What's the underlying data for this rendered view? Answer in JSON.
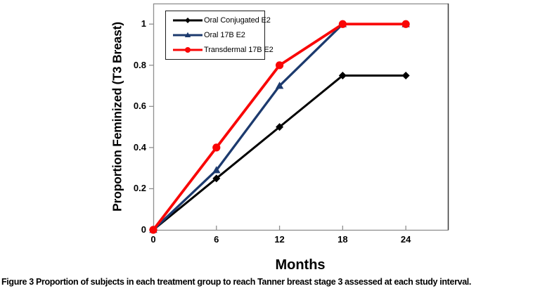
{
  "figure": {
    "caption_label": "Figure 3",
    "caption_text": "Proportion of subjects in each treatment group to reach Tanner breast stage 3 assessed at each study interval."
  },
  "chart_data": {
    "type": "line",
    "title": "",
    "xlabel": "Months",
    "ylabel": "Proportion Feminized (T3 Breast)",
    "x": [
      0,
      6,
      12,
      18,
      24
    ],
    "xtick_labels": [
      "0",
      "6",
      "12",
      "18",
      "24"
    ],
    "ytick_values": [
      0,
      0.2,
      0.4,
      0.6,
      0.8,
      1
    ],
    "ytick_labels": [
      "0",
      "0.2",
      "0.4",
      "0.6",
      "0.8",
      "1"
    ],
    "xlim": [
      0,
      28
    ],
    "ylim": [
      0,
      1.1
    ],
    "grid": false,
    "legend_position": "top-left-inside",
    "series": [
      {
        "name": "Oral Conjugated E2",
        "color": "#000000",
        "marker": "diamond",
        "line_width": 3.0,
        "values": [
          0,
          0.25,
          0.5,
          0.75,
          0.75
        ]
      },
      {
        "name": "Oral 17B E2",
        "color": "#1c3a6e",
        "marker": "triangle",
        "line_width": 3.3,
        "values": [
          0,
          0.29,
          0.7,
          1.0,
          1.0
        ]
      },
      {
        "name": "Transdermal 17B E2",
        "color": "#f90606",
        "marker": "circle",
        "line_width": 3.8,
        "values": [
          0,
          0.4,
          0.8,
          1.0,
          1.0
        ]
      }
    ],
    "colors": {
      "frame": "#8f8f8f",
      "right_spine": "#3a3a3a",
      "tick": "#8f8f8f",
      "background": "#ffffff"
    }
  }
}
